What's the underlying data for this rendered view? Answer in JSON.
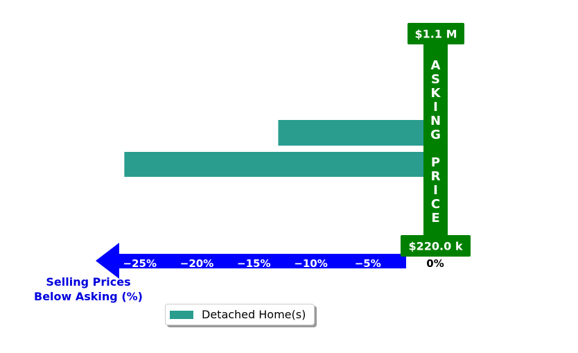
{
  "chart_data": {
    "type": "bar",
    "orientation": "horizontal",
    "series": [
      {
        "name": "Detached Home(s)",
        "color": "#2a9d8f",
        "values": [
          -12.8,
          -26.3
        ]
      }
    ],
    "xlim": [
      -28,
      0
    ],
    "ticks": [
      -25,
      -20,
      -15,
      -10,
      -5,
      0
    ],
    "tick_labels": [
      "−25%",
      "−20%",
      "−15%",
      "−10%",
      "−5%",
      "0%"
    ],
    "xlabel": "Selling Prices\nBelow Asking (%)",
    "xlabel_lines": [
      "Selling Prices",
      "Below Asking (%)"
    ],
    "price_axis": {
      "label": "ASKING PRICE",
      "top_value": "$1.1 M",
      "bottom_value": "$220.0 k"
    },
    "legend": {
      "position": "bottom-center",
      "entries": [
        "Detached Home(s)"
      ]
    },
    "grid": false
  },
  "colors": {
    "bar": "#2a9d8f",
    "asking_price_bar": "#008000",
    "arrow": "#0000ff",
    "side_label": "#0000dd",
    "tick_text": "#ffffff",
    "zero_tick_text": "#000000"
  },
  "legend": {
    "label": "Detached Home(s)"
  }
}
